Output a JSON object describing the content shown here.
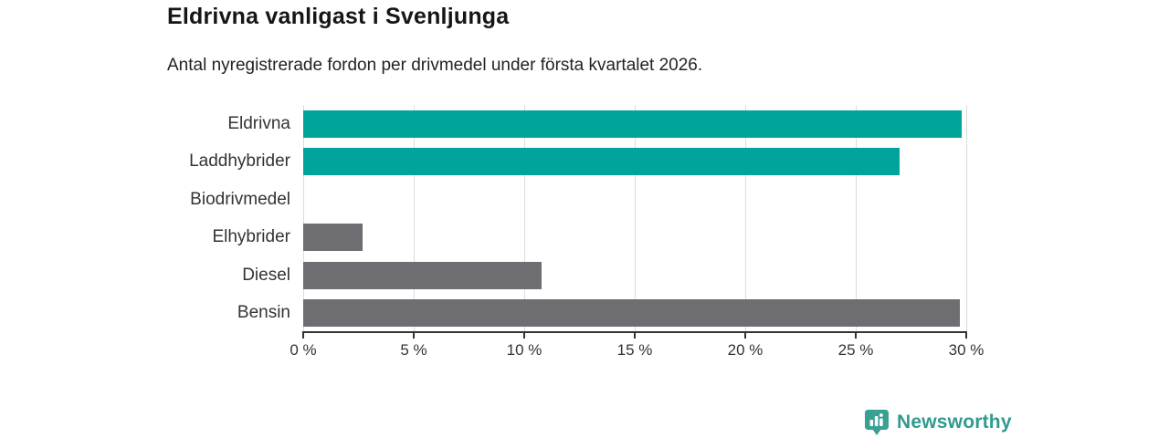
{
  "header": {
    "title": "Eldrivna vanligast i Svenljunga",
    "subtitle": "Antal nyregistrerade fordon per drivmedel under första kvartalet 2026."
  },
  "chart_data": {
    "type": "bar",
    "orientation": "horizontal",
    "title": "Eldrivna vanligast i Svenljunga",
    "subtitle": "Antal nyregistrerade fordon per drivmedel under första kvartalet 2026.",
    "categories": [
      "Eldrivna",
      "Laddhybrider",
      "Biodrivmedel",
      "Elhybrider",
      "Diesel",
      "Bensin"
    ],
    "values": [
      29.8,
      27.0,
      0,
      2.7,
      10.8,
      29.7
    ],
    "unit": "%",
    "xlabel": "",
    "ylabel": "",
    "xlim": [
      0,
      30
    ],
    "x_tick_values": [
      0,
      5,
      10,
      15,
      20,
      25,
      30
    ],
    "x_tick_labels": [
      "0 %",
      "5 %",
      "10 %",
      "15 %",
      "20 %",
      "25 %",
      "30 %"
    ],
    "grid": true,
    "legend": false,
    "bar_colors": [
      "#00a49a",
      "#00a49a",
      "#00a49a",
      "#6d6d72",
      "#6d6d72",
      "#6d6d72"
    ]
  },
  "colors": {
    "teal_bar": "#00a49a",
    "gray_bar": "#6d6d72",
    "gridline": "#dcdcdc",
    "axis": "#333333",
    "text": "#333333",
    "logo": "#2f9a8f"
  },
  "branding": {
    "logo_text": "Newsworthy",
    "logo_icon": "bar-chart-speech-bubble-icon"
  }
}
